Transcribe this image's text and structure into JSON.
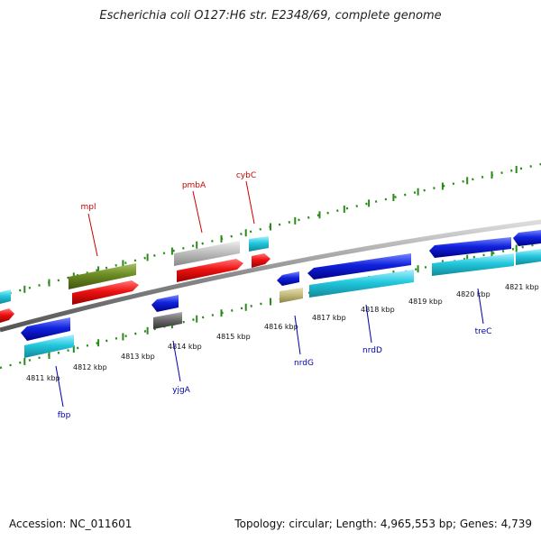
{
  "title": "Escherichia coli O127:H6 str. E2348/69, complete genome",
  "footer": {
    "accession": "Accession: NC_011601",
    "summary": "Topology: circular; Length: 4,965,553 bp; Genes: 4,739"
  },
  "ticks": [
    {
      "label": "4811 kbp"
    },
    {
      "label": "4812 kbp"
    },
    {
      "label": "4813 kbp"
    },
    {
      "label": "4814 kbp"
    },
    {
      "label": "4815 kbp"
    },
    {
      "label": "4816 kbp"
    },
    {
      "label": "4817 kbp"
    },
    {
      "label": "4818 kbp"
    },
    {
      "label": "4819 kbp"
    },
    {
      "label": "4820 kbp"
    },
    {
      "label": "4821 kbp"
    }
  ],
  "gene_labels": [
    {
      "name": "mpl",
      "color": "#cc0000"
    },
    {
      "name": "pmbA",
      "color": "#cc0000"
    },
    {
      "name": "cybC",
      "color": "#cc0000"
    },
    {
      "name": "fbp",
      "color": "#0000aa"
    },
    {
      "name": "yjgA",
      "color": "#0000aa"
    },
    {
      "name": "nrdG",
      "color": "#0000aa"
    },
    {
      "name": "nrdD",
      "color": "#0000aa"
    },
    {
      "name": "treC",
      "color": "#0000aa"
    }
  ],
  "colors": {
    "backbone": "#8a8a8a",
    "tick_dots": "#2a8a1a",
    "forward_cds": "#ee1111",
    "reverse_cds": "#1122dd",
    "rna_cyan": "#22c8dd",
    "olive": "#6b8a22",
    "grey": "#bbbbbb",
    "dark_grey": "#666666",
    "khaki": "#c0b878"
  }
}
